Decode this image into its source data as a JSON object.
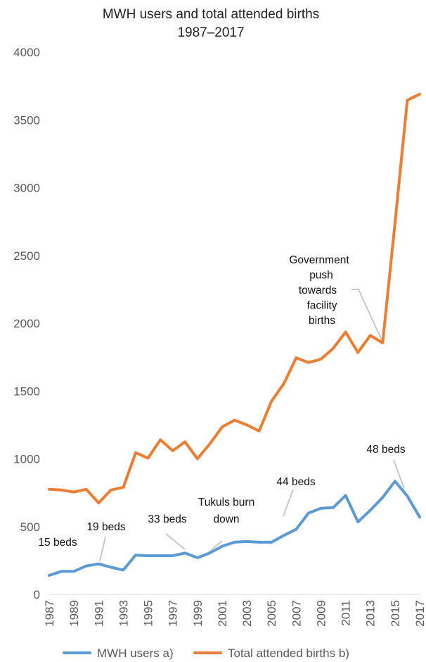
{
  "chart_data": {
    "type": "line",
    "title": [
      "MWH users and total attended births",
      "1987–2017"
    ],
    "xlabel": "",
    "ylabel": "",
    "ylim": [
      0,
      4000
    ],
    "yticks": [
      "0",
      "500",
      "1000",
      "1500",
      "2000",
      "2500",
      "3000",
      "3500",
      "4000"
    ],
    "x": [
      1987,
      1988,
      1989,
      1990,
      1991,
      1992,
      1993,
      1994,
      1995,
      1996,
      1997,
      1998,
      1999,
      2000,
      2001,
      2002,
      2003,
      2004,
      2005,
      2006,
      2007,
      2008,
      2009,
      2010,
      2011,
      2012,
      2013,
      2014,
      2015,
      2016,
      2017
    ],
    "xticks": [
      "1987",
      "1989",
      "1991",
      "1993",
      "1995",
      "1997",
      "1999",
      "2001",
      "2003",
      "2005",
      "2007",
      "2009",
      "2011",
      "2013",
      "2015",
      "2017"
    ],
    "grid": false,
    "legend": "bottom",
    "series": [
      {
        "name": "MWH users a)",
        "color": "#5B9BD5",
        "values": [
          140,
          170,
          170,
          210,
          225,
          200,
          180,
          290,
          285,
          285,
          285,
          305,
          270,
          305,
          355,
          385,
          390,
          385,
          385,
          435,
          480,
          600,
          635,
          640,
          730,
          535,
          620,
          715,
          835,
          725,
          570
        ]
      },
      {
        "name": "Total attended births b)",
        "color": "#ED7D31",
        "values": [
          775,
          770,
          755,
          775,
          675,
          770,
          790,
          1045,
          1005,
          1140,
          1060,
          1125,
          1000,
          1110,
          1235,
          1285,
          1250,
          1205,
          1425,
          1555,
          1745,
          1710,
          1735,
          1815,
          1935,
          1785,
          1910,
          1855,
          2740,
          3645,
          3690
        ]
      }
    ],
    "annotations": [
      {
        "lines": [
          "15 beds"
        ],
        "year": 1987,
        "value": 140
      },
      {
        "lines": [
          "19 beds"
        ],
        "year": 1991,
        "value": 225
      },
      {
        "lines": [
          "33 beds"
        ],
        "year": 1998,
        "value": 305
      },
      {
        "lines": [
          "Tukuls burn",
          "down"
        ],
        "year": 2000,
        "value": 305
      },
      {
        "lines": [
          "44 beds"
        ],
        "year": 2006,
        "value": 435
      },
      {
        "lines": [
          "48 beds"
        ],
        "year": 2016,
        "value": 725
      },
      {
        "lines": [
          "Government",
          "push",
          "towards",
          "facility",
          "births"
        ],
        "year": 2014,
        "value": 1855
      }
    ]
  }
}
